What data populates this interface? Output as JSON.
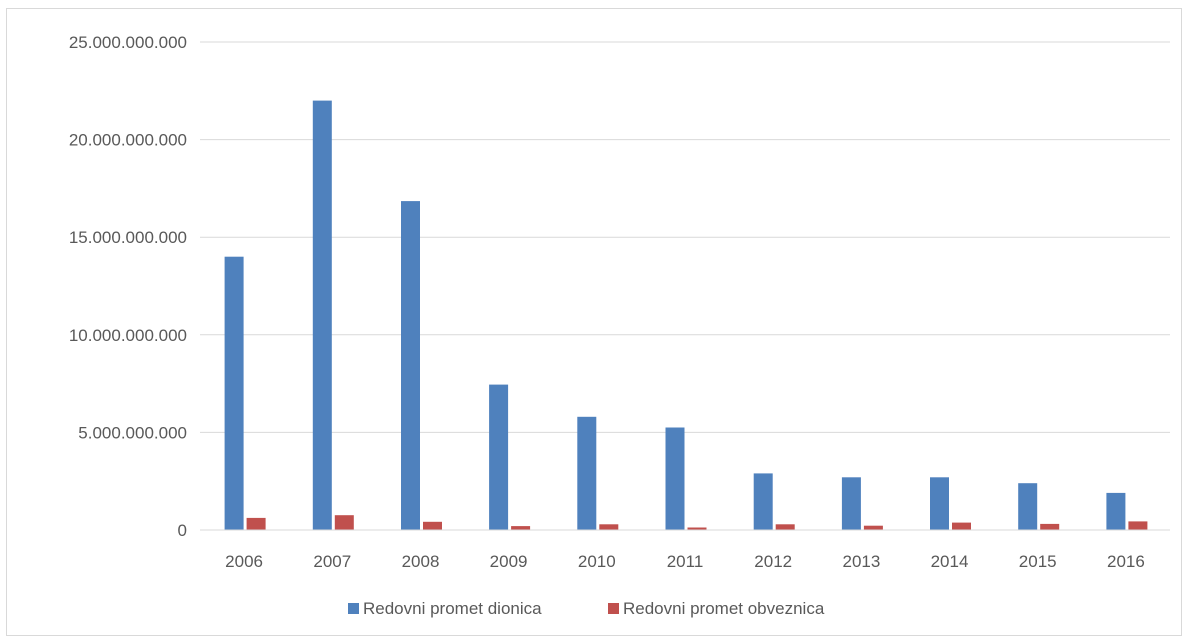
{
  "chart_data": {
    "type": "bar",
    "title": "",
    "xlabel": "",
    "ylabel": "",
    "categories": [
      "2006",
      "2007",
      "2008",
      "2009",
      "2010",
      "2011",
      "2012",
      "2013",
      "2014",
      "2015",
      "2016"
    ],
    "series": [
      {
        "name": "Redovni promet dionica",
        "color": "#4f81bd",
        "values": [
          14000000000,
          22000000000,
          16850000000,
          7450000000,
          5800000000,
          5250000000,
          2900000000,
          2700000000,
          2700000000,
          2400000000,
          1900000000
        ]
      },
      {
        "name": "Redovni promet obveznica",
        "color": "#c0504d",
        "values": [
          620000000,
          760000000,
          420000000,
          200000000,
          290000000,
          130000000,
          290000000,
          220000000,
          380000000,
          310000000,
          440000000
        ]
      }
    ],
    "ylim": [
      0,
      25000000000
    ],
    "yticks": [
      0,
      5000000000,
      10000000000,
      15000000000,
      20000000000,
      25000000000
    ],
    "ytick_labels": [
      "0",
      "5.000.000.000",
      "10.000.000.000",
      "15.000.000.000",
      "20.000.000.000",
      "25.000.000.000"
    ],
    "grid": true,
    "legend_position": "bottom"
  }
}
